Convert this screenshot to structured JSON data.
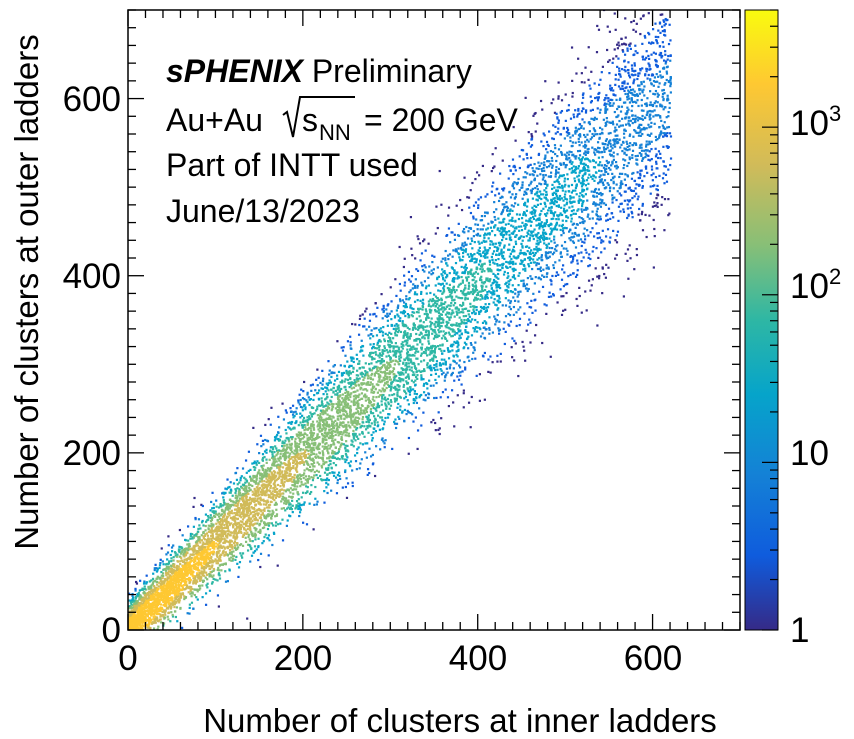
{
  "chart_data": {
    "type": "heatmap",
    "xlabel": "Number of clusters at inner ladders",
    "ylabel": "Number of clusters at outer ladders",
    "xlim": [
      0,
      700
    ],
    "ylim": [
      0,
      700
    ],
    "x_ticks": [
      "0",
      "200",
      "400",
      "600"
    ],
    "y_ticks": [
      "0",
      "200",
      "400",
      "600"
    ],
    "annotations": {
      "experiment": "sPHENIX",
      "status": "Preliminary",
      "collision": "Au+Au",
      "sqrt_s": "s",
      "sqrt_s_sub": "NN",
      "energy": "= 200 GeV",
      "detector": "Part of INTT used",
      "date": "June/13/2023"
    },
    "colorbar": {
      "scale": "log",
      "range": [
        1,
        5000
      ],
      "labels": [
        {
          "value": 1,
          "text": "1"
        },
        {
          "value": 10,
          "text": "10"
        },
        {
          "value": 100,
          "base": "10",
          "exp": "2"
        },
        {
          "value": 1000,
          "base": "10",
          "exp": "3"
        }
      ],
      "colormap": [
        "#352a87",
        "#0f5cdd",
        "#1481d6",
        "#06a4ca",
        "#2eb7a4",
        "#87bf77",
        "#d1bb59",
        "#fec832",
        "#f9fb0e"
      ]
    },
    "distribution": {
      "description_points": [
        {
          "x": 0,
          "y": 0,
          "counts": 3000
        },
        {
          "x": 100,
          "y": 100,
          "counts": 120
        },
        {
          "x": 200,
          "y": 200,
          "counts": 40
        },
        {
          "x": 300,
          "y": 300,
          "counts": 15
        },
        {
          "x": 400,
          "y": 400,
          "counts": 5
        },
        {
          "x": 500,
          "y": 480,
          "counts": 2
        }
      ],
      "correlation_slope": 0.98,
      "max_x": 620,
      "max_y": 640
    }
  }
}
